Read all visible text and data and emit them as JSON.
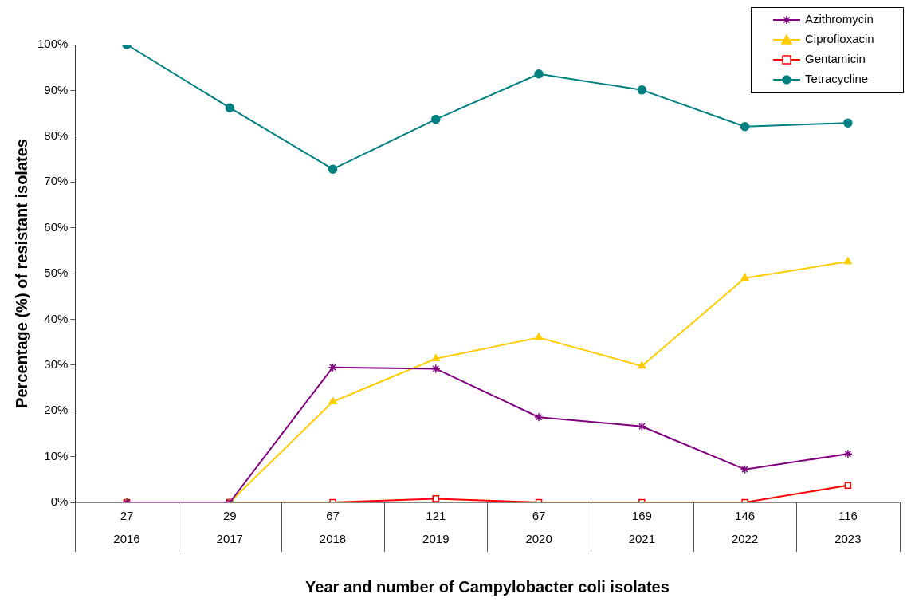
{
  "chart_data": {
    "type": "line",
    "categories": [
      "27\n2016",
      "29\n2017",
      "67\n2018",
      "121\n2019",
      "67\n2020",
      "169\n2021",
      "146\n2022",
      "116\n2023"
    ],
    "xlabel": "Year and number of Campylobacter coli isolates",
    "ylabel": "Percentage (%) of resistant isolates",
    "ylim": [
      0,
      100
    ],
    "yticks": [
      {
        "value": 0,
        "label": "0%"
      },
      {
        "value": 10,
        "label": "10%"
      },
      {
        "value": 20,
        "label": "20%"
      },
      {
        "value": 30,
        "label": "30%"
      },
      {
        "value": 40,
        "label": "40%"
      },
      {
        "value": 50,
        "label": "50%"
      },
      {
        "value": 60,
        "label": "60%"
      },
      {
        "value": 70,
        "label": "70%"
      },
      {
        "value": 80,
        "label": "80%"
      },
      {
        "value": 90,
        "label": "90%"
      },
      {
        "value": 100,
        "label": "100%"
      }
    ],
    "grid": false,
    "legend": "top right",
    "series": [
      {
        "name": "Azithromycin",
        "color": "#800080",
        "marker": "cross",
        "values": [
          0,
          0,
          29.5,
          29.2,
          18.6,
          16.6,
          7.2,
          10.6
        ]
      },
      {
        "name": "Ciprofloxacin",
        "color": "#ffcc00",
        "marker": "triangle",
        "values": [
          0,
          0,
          22.0,
          31.4,
          36.0,
          29.8,
          49.0,
          52.6
        ]
      },
      {
        "name": "Gentamicin",
        "color": "#ff0000",
        "marker": "square",
        "values": [
          0,
          0,
          0,
          0.8,
          0,
          0,
          0,
          3.7
        ]
      },
      {
        "name": "Tetracycline",
        "color": "#008080",
        "marker": "circle",
        "values": [
          100,
          86.2,
          72.8,
          83.7,
          93.6,
          90.1,
          82.1,
          82.9
        ]
      }
    ]
  }
}
